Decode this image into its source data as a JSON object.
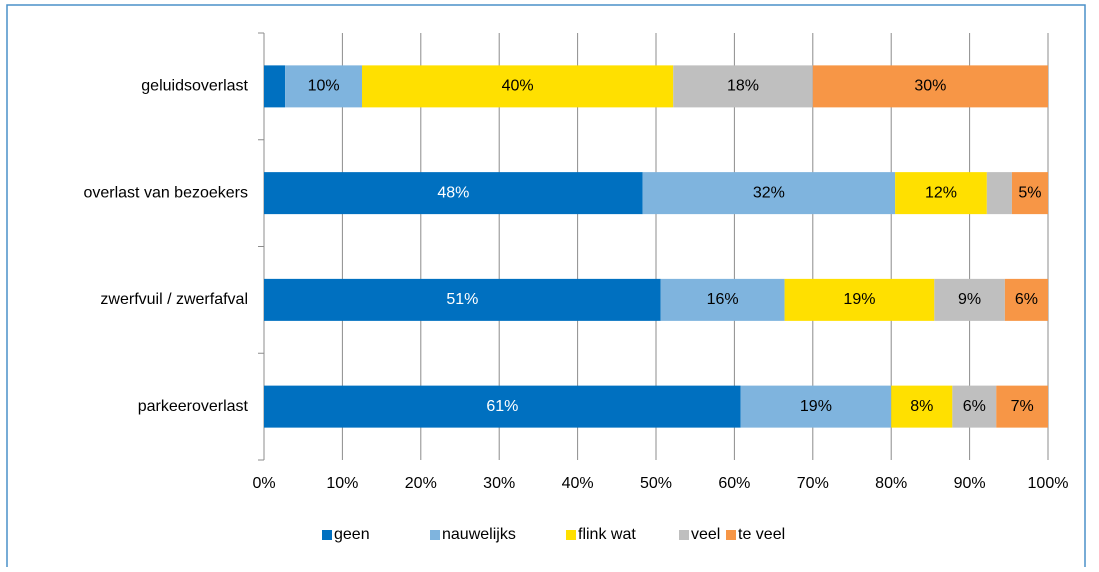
{
  "chart_data": {
    "type": "stacked-bar-horizontal",
    "categories": [
      "geluidsoverlast",
      "overlast van bezoekers",
      "zwerfvuil  / zwerfafval",
      "parkeeroverlast"
    ],
    "series": [
      {
        "name": "geen",
        "color": "#0070c0",
        "values": [
          2.7,
          48.3,
          50.6,
          60.8
        ],
        "value_labels": [
          null,
          "48%",
          "51%",
          "61%"
        ]
      },
      {
        "name": "nauwelijks",
        "color": "#7fb4de",
        "values": [
          9.8,
          32.2,
          15.8,
          19.2
        ],
        "value_labels": [
          "10%",
          "32%",
          "16%",
          "19%"
        ]
      },
      {
        "name": "flink wat",
        "color": "#ffe000",
        "values": [
          39.7,
          11.7,
          19.1,
          7.8
        ],
        "value_labels": [
          "40%",
          "12%",
          "19%",
          "8%"
        ]
      },
      {
        "name": "veel",
        "color": "#bfbfbf",
        "values": [
          17.8,
          3.2,
          9.0,
          5.6
        ],
        "value_labels": [
          "18%",
          null,
          "9%",
          "6%"
        ]
      },
      {
        "name": "te veel",
        "color": "#f79646",
        "values": [
          30.0,
          4.6,
          5.5,
          6.6
        ],
        "value_labels": [
          "30%",
          "5%",
          "6%",
          "7%"
        ]
      }
    ],
    "xlim": [
      0,
      100
    ],
    "xticks": [
      {
        "value": 0,
        "label": "0%"
      },
      {
        "value": 10,
        "label": "10%"
      },
      {
        "value": 20,
        "label": "20%"
      },
      {
        "value": 30,
        "label": "30%"
      },
      {
        "value": 40,
        "label": "40%"
      },
      {
        "value": 50,
        "label": "50%"
      },
      {
        "value": 60,
        "label": "60%"
      },
      {
        "value": 70,
        "label": "70%"
      },
      {
        "value": 80,
        "label": "80%"
      },
      {
        "value": 90,
        "label": "90%"
      },
      {
        "value": 100,
        "label": "100%"
      }
    ],
    "grid": true,
    "legend": "bottom"
  }
}
